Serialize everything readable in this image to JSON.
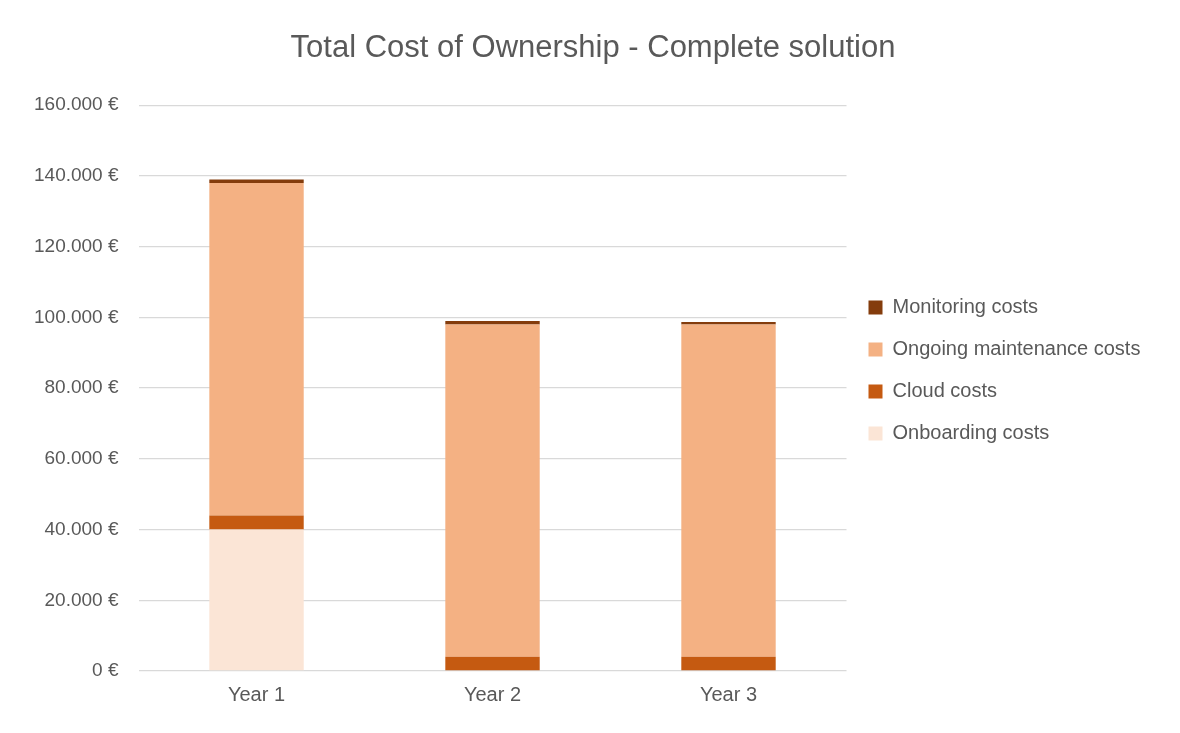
{
  "chart_data": {
    "type": "bar",
    "title": "Total Cost of Ownership - Complete solution",
    "categories": [
      "Year 1",
      "Year 2",
      "Year 3"
    ],
    "series": [
      {
        "name": "Onboarding costs",
        "color": "#fbe5d6",
        "values": [
          40000,
          0,
          0
        ]
      },
      {
        "name": "Cloud costs",
        "color": "#c55a11",
        "values": [
          4000,
          4000,
          4000
        ]
      },
      {
        "name": "Ongoing maintenance costs",
        "color": "#f4b183",
        "values": [
          94000,
          94000,
          94000
        ]
      },
      {
        "name": "Monitoring costs",
        "color": "#843c0c",
        "values": [
          1000,
          1000,
          700
        ]
      }
    ],
    "stacked": true,
    "ylim": [
      0,
      160000
    ],
    "yticks": [
      {
        "value": 0,
        "label": "0 €"
      },
      {
        "value": 20000,
        "label": "20.000 €"
      },
      {
        "value": 40000,
        "label": "40.000 €"
      },
      {
        "value": 60000,
        "label": "60.000 €"
      },
      {
        "value": 80000,
        "label": "80.000 €"
      },
      {
        "value": 100000,
        "label": "100.000 €"
      },
      {
        "value": 120000,
        "label": "120.000 €"
      },
      {
        "value": 140000,
        "label": "140.000 €"
      },
      {
        "value": 160000,
        "label": "160.000 €"
      }
    ],
    "grid": "y",
    "legend": "right"
  }
}
